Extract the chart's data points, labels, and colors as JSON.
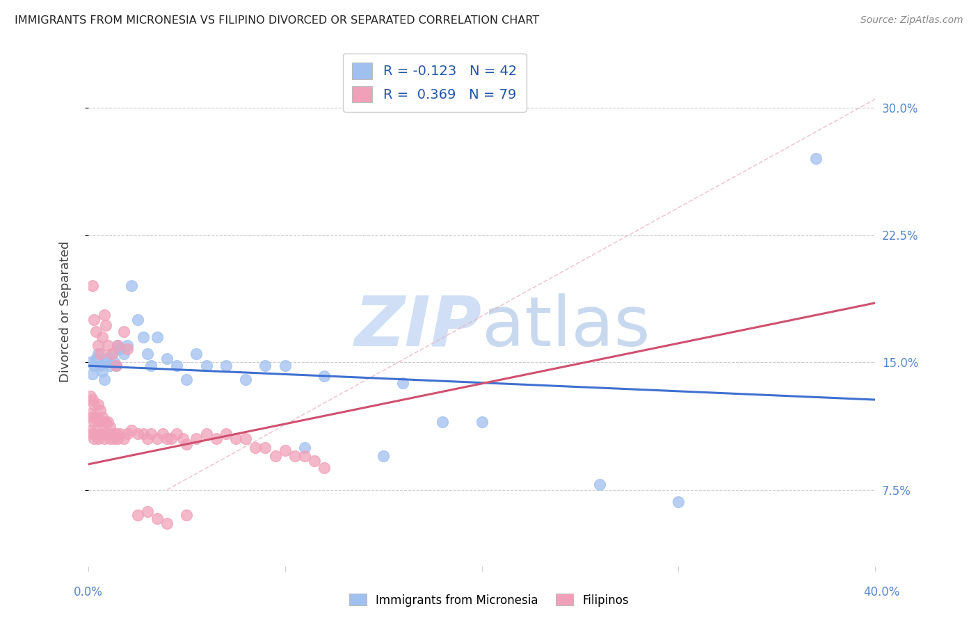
{
  "title": "IMMIGRANTS FROM MICRONESIA VS FILIPINO DIVORCED OR SEPARATED CORRELATION CHART",
  "source": "Source: ZipAtlas.com",
  "ylabel": "Divorced or Separated",
  "yticks": [
    "7.5%",
    "15.0%",
    "22.5%",
    "30.0%"
  ],
  "ytick_vals": [
    0.075,
    0.15,
    0.225,
    0.3
  ],
  "xlim": [
    0.0,
    0.4
  ],
  "ylim": [
    0.03,
    0.33
  ],
  "blue_R": "-0.123",
  "blue_N": "42",
  "pink_R": "0.369",
  "pink_N": "79",
  "blue_color": "#a0c0f0",
  "pink_color": "#f0a0b8",
  "blue_line_color": "#4070d0",
  "pink_line_color": "#d05070",
  "watermark_color": "#d0dff5",
  "blue_scatter_x": [
    0.001,
    0.002,
    0.003,
    0.004,
    0.005,
    0.006,
    0.007,
    0.008,
    0.009,
    0.01,
    0.011,
    0.012,
    0.013,
    0.014,
    0.015,
    0.016,
    0.018,
    0.02,
    0.022,
    0.025,
    0.028,
    0.03,
    0.032,
    0.035,
    0.04,
    0.045,
    0.05,
    0.055,
    0.06,
    0.07,
    0.08,
    0.09,
    0.1,
    0.11,
    0.12,
    0.15,
    0.16,
    0.18,
    0.2,
    0.26,
    0.3,
    0.37
  ],
  "blue_scatter_y": [
    0.15,
    0.143,
    0.148,
    0.152,
    0.155,
    0.148,
    0.145,
    0.14,
    0.15,
    0.152,
    0.148,
    0.155,
    0.15,
    0.148,
    0.16,
    0.158,
    0.155,
    0.16,
    0.195,
    0.175,
    0.165,
    0.155,
    0.148,
    0.165,
    0.152,
    0.148,
    0.14,
    0.155,
    0.148,
    0.148,
    0.14,
    0.148,
    0.148,
    0.1,
    0.142,
    0.095,
    0.138,
    0.115,
    0.115,
    0.078,
    0.068,
    0.27
  ],
  "pink_scatter_x": [
    0.001,
    0.001,
    0.001,
    0.002,
    0.002,
    0.002,
    0.003,
    0.003,
    0.003,
    0.004,
    0.004,
    0.005,
    0.005,
    0.005,
    0.006,
    0.006,
    0.006,
    0.007,
    0.007,
    0.008,
    0.008,
    0.009,
    0.009,
    0.01,
    0.01,
    0.011,
    0.011,
    0.012,
    0.013,
    0.014,
    0.015,
    0.016,
    0.018,
    0.02,
    0.022,
    0.025,
    0.028,
    0.03,
    0.032,
    0.035,
    0.038,
    0.04,
    0.042,
    0.045,
    0.048,
    0.05,
    0.055,
    0.06,
    0.065,
    0.07,
    0.075,
    0.08,
    0.085,
    0.09,
    0.095,
    0.1,
    0.105,
    0.11,
    0.115,
    0.12,
    0.002,
    0.003,
    0.004,
    0.005,
    0.006,
    0.007,
    0.008,
    0.009,
    0.01,
    0.012,
    0.014,
    0.015,
    0.018,
    0.02,
    0.025,
    0.03,
    0.035,
    0.04,
    0.05
  ],
  "pink_scatter_y": [
    0.11,
    0.12,
    0.13,
    0.108,
    0.118,
    0.128,
    0.105,
    0.115,
    0.125,
    0.108,
    0.118,
    0.105,
    0.115,
    0.125,
    0.108,
    0.115,
    0.122,
    0.108,
    0.118,
    0.105,
    0.115,
    0.108,
    0.115,
    0.108,
    0.115,
    0.105,
    0.112,
    0.108,
    0.105,
    0.108,
    0.105,
    0.108,
    0.105,
    0.108,
    0.11,
    0.108,
    0.108,
    0.105,
    0.108,
    0.105,
    0.108,
    0.105,
    0.105,
    0.108,
    0.105,
    0.102,
    0.105,
    0.108,
    0.105,
    0.108,
    0.105,
    0.105,
    0.1,
    0.1,
    0.095,
    0.098,
    0.095,
    0.095,
    0.092,
    0.088,
    0.195,
    0.175,
    0.168,
    0.16,
    0.155,
    0.165,
    0.178,
    0.172,
    0.16,
    0.155,
    0.148,
    0.16,
    0.168,
    0.158,
    0.06,
    0.062,
    0.058,
    0.055,
    0.06
  ],
  "blue_line_x": [
    0.0,
    0.4
  ],
  "blue_line_y": [
    0.148,
    0.128
  ],
  "pink_line_x": [
    0.0,
    0.4
  ],
  "pink_line_y": [
    0.09,
    0.185
  ],
  "diag_line_x": [
    0.04,
    0.4
  ],
  "diag_line_y": [
    0.075,
    0.305
  ]
}
